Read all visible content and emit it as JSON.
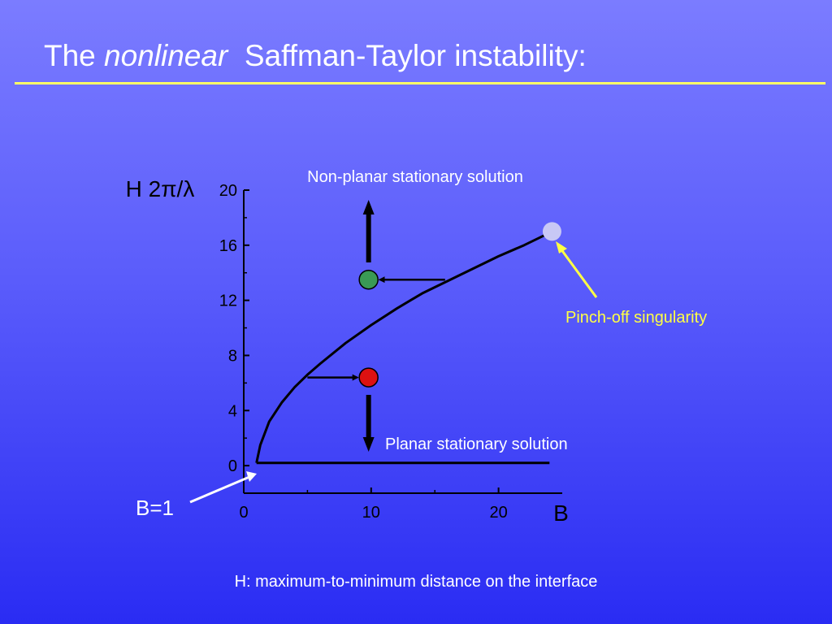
{
  "slide": {
    "title_prefix": "The",
    "title_emphasis": "nonlinear",
    "title_suffix": "Saffman-Taylor instability:",
    "footnote": "H: maximum-to-minimum distance on the interface"
  },
  "colors": {
    "curve": "#000000",
    "stable_marker": "#3a9a55",
    "unstable_marker": "#dd1111",
    "singularity_marker": "#c8c8f5",
    "annotation_yellow": "#ffff44"
  },
  "chart_data": {
    "type": "line",
    "xlabel": "B",
    "ylabel": "H 2π/λ",
    "xlim": [
      0,
      25
    ],
    "ylim": [
      -2,
      20
    ],
    "x_ticks": [
      "0",
      "10",
      "20"
    ],
    "y_ticks": [
      "0",
      "4",
      "8",
      "12",
      "16",
      "20"
    ],
    "series": [
      {
        "x": [
          1,
          1.3,
          2,
          3,
          4,
          5,
          6,
          8,
          10,
          12,
          14,
          16,
          18,
          20,
          22,
          24
        ],
        "y": [
          0.2,
          1.5,
          3.2,
          4.6,
          5.7,
          6.6,
          7.4,
          8.9,
          10.2,
          11.4,
          12.5,
          13.4,
          14.3,
          15.2,
          16.0,
          16.9
        ]
      },
      {
        "x": [
          1,
          24
        ],
        "y": [
          0.2,
          0.2
        ]
      }
    ],
    "points": [
      {
        "name": "stable",
        "x": 9.8,
        "y": 13.5
      },
      {
        "name": "unstable",
        "x": 9.8,
        "y": 6.4
      },
      {
        "name": "singularity",
        "x": 24.2,
        "y": 17.0
      }
    ],
    "annotations": {
      "non_planar": "Non-planar stationary solution",
      "planar": "Planar stationary solution",
      "pinch_off": "Pinch-off singularity",
      "b_equals_one": "B=1"
    }
  }
}
